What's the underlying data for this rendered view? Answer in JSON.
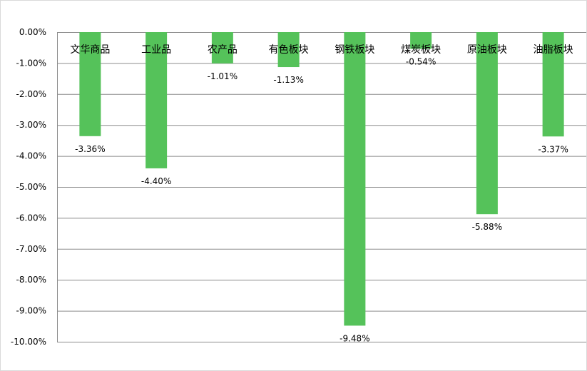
{
  "chart_data": {
    "type": "bar",
    "categories": [
      "文华商品",
      "工业品",
      "农产品",
      "有色板块",
      "钢铁板块",
      "煤炭板块",
      "原油板块",
      "油脂板块"
    ],
    "values": [
      -3.36,
      -4.4,
      -1.01,
      -1.13,
      -9.48,
      -0.54,
      -5.88,
      -3.37
    ],
    "data_labels": [
      "-3.36%",
      "-4.40%",
      "-1.01%",
      "-1.13%",
      "-9.48%",
      "-0.54%",
      "-5.88%",
      "-3.37%"
    ],
    "ylim": [
      -10,
      0
    ],
    "yticks": [
      0,
      -1,
      -2,
      -3,
      -4,
      -5,
      -6,
      -7,
      -8,
      -9,
      -10
    ],
    "ytick_labels": [
      "0.00%",
      "-1.00%",
      "-2.00%",
      "-3.00%",
      "-4.00%",
      "-5.00%",
      "-6.00%",
      "-7.00%",
      "-8.00%",
      "-9.00%",
      "-10.00%"
    ],
    "title": "",
    "xlabel": "",
    "ylabel": "",
    "grid": true,
    "legend": "none",
    "colors": {
      "bar": "#55c25a",
      "grid": "#8c8c8c",
      "axis": "#8c8c8c",
      "border": "#d9d9d9"
    }
  }
}
